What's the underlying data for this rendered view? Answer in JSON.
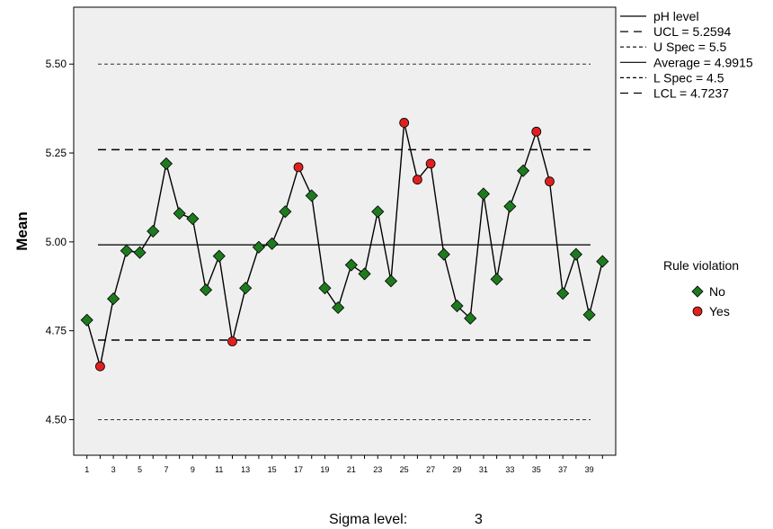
{
  "chart_data": {
    "type": "line",
    "ylabel": "Mean",
    "xlim": [
      0,
      41
    ],
    "ylim": [
      4.4,
      5.66
    ],
    "yticks": [
      4.5,
      4.75,
      5.0,
      5.25,
      5.5
    ],
    "ytick_labels": [
      "4.50",
      "4.75",
      "5.00",
      "5.25",
      "5.50"
    ],
    "xticks": [
      1,
      3,
      5,
      7,
      9,
      11,
      13,
      15,
      17,
      19,
      21,
      23,
      25,
      27,
      29,
      31,
      33,
      35,
      37,
      39
    ],
    "grid": false,
    "background": "#efefef",
    "series": [
      {
        "name": "pH level",
        "x": [
          1,
          2,
          3,
          4,
          5,
          6,
          7,
          8,
          9,
          10,
          11,
          12,
          13,
          14,
          15,
          16,
          17,
          18,
          19,
          20,
          21,
          22,
          23,
          24,
          25,
          26,
          27,
          28,
          29,
          30,
          31,
          32,
          33,
          34,
          35,
          36,
          37,
          38,
          39,
          40
        ],
        "values": [
          4.78,
          4.65,
          4.84,
          4.975,
          4.97,
          5.03,
          5.22,
          5.08,
          5.065,
          4.865,
          4.96,
          4.72,
          4.87,
          4.985,
          4.995,
          5.085,
          5.21,
          5.13,
          4.87,
          4.815,
          4.935,
          4.91,
          5.085,
          4.89,
          5.335,
          5.175,
          5.22,
          4.965,
          4.82,
          4.785,
          5.135,
          4.895,
          5.1,
          5.2,
          5.31,
          5.17,
          4.855,
          4.965,
          4.795,
          4.945
        ],
        "rule_violation": [
          "No",
          "Yes",
          "No",
          "No",
          "No",
          "No",
          "No",
          "No",
          "No",
          "No",
          "No",
          "Yes",
          "No",
          "No",
          "No",
          "No",
          "Yes",
          "No",
          "No",
          "No",
          "No",
          "No",
          "No",
          "No",
          "Yes",
          "Yes",
          "Yes",
          "No",
          "No",
          "No",
          "No",
          "No",
          "No",
          "No",
          "Yes",
          "Yes",
          "No",
          "No",
          "No",
          "No"
        ]
      }
    ],
    "reference_lines": [
      {
        "name": "UCL = 5.2594",
        "value": 5.2594,
        "style": "long-dash"
      },
      {
        "name": "U Spec = 5.5",
        "value": 5.5,
        "style": "short-dash"
      },
      {
        "name": "Average = 4.9915",
        "value": 4.9915,
        "style": "solid"
      },
      {
        "name": "L Spec = 4.5",
        "value": 4.5,
        "style": "short-dash"
      },
      {
        "name": "LCL = 4.7237",
        "value": 4.7237,
        "style": "long-dash"
      }
    ],
    "legend_lines": [
      "pH level",
      "UCL = 5.2594",
      "U Spec = 5.5",
      "Average = 4.9915",
      "L Spec = 4.5",
      "LCL = 4.7237"
    ],
    "legend_placement": "right",
    "rule_violation_legend": {
      "title": "Rule violation",
      "entries": [
        {
          "label": "No",
          "color": "#1e7a1e",
          "marker": "diamond"
        },
        {
          "label": "Yes",
          "color": "#e02020",
          "marker": "circle"
        }
      ]
    },
    "colors": {
      "line": "#000000",
      "no_marker": "#1e7a1e",
      "yes_marker": "#e02020"
    }
  },
  "footer": {
    "sigma_label": "Sigma level:",
    "sigma_value": "3"
  }
}
